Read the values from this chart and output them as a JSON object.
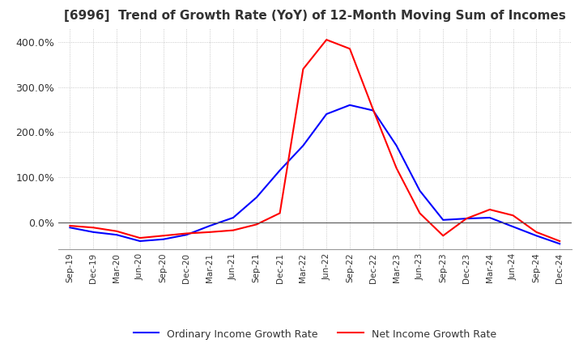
{
  "title": "[6996]  Trend of Growth Rate (YoY) of 12-Month Moving Sum of Incomes",
  "title_fontsize": 11,
  "ylim": [
    -60,
    430
  ],
  "yticks": [
    0,
    100,
    200,
    300,
    400
  ],
  "ytick_labels": [
    "0.0%",
    "100.0%",
    "200.0%",
    "300.0%",
    "400.0%"
  ],
  "legend_labels": [
    "Ordinary Income Growth Rate",
    "Net Income Growth Rate"
  ],
  "line_colors": [
    "#0000ff",
    "#ff0000"
  ],
  "background_color": "#ffffff",
  "grid_color": "#bbbbbb",
  "dates": [
    "Sep-19",
    "Dec-19",
    "Mar-20",
    "Jun-20",
    "Sep-20",
    "Dec-20",
    "Mar-21",
    "Jun-21",
    "Sep-21",
    "Dec-21",
    "Mar-22",
    "Jun-22",
    "Sep-22",
    "Dec-22",
    "Mar-23",
    "Jun-23",
    "Sep-23",
    "Dec-23",
    "Mar-24",
    "Jun-24",
    "Sep-24",
    "Dec-24"
  ],
  "ordinary_income": [
    -12,
    -22,
    -28,
    -42,
    -38,
    -28,
    -8,
    10,
    55,
    115,
    170,
    240,
    260,
    248,
    170,
    70,
    5,
    8,
    10,
    -10,
    -30,
    -48
  ],
  "net_income": [
    -8,
    -12,
    -20,
    -35,
    -30,
    -25,
    -22,
    -18,
    -5,
    20,
    340,
    405,
    385,
    250,
    120,
    20,
    -30,
    8,
    28,
    15,
    -22,
    -42
  ]
}
